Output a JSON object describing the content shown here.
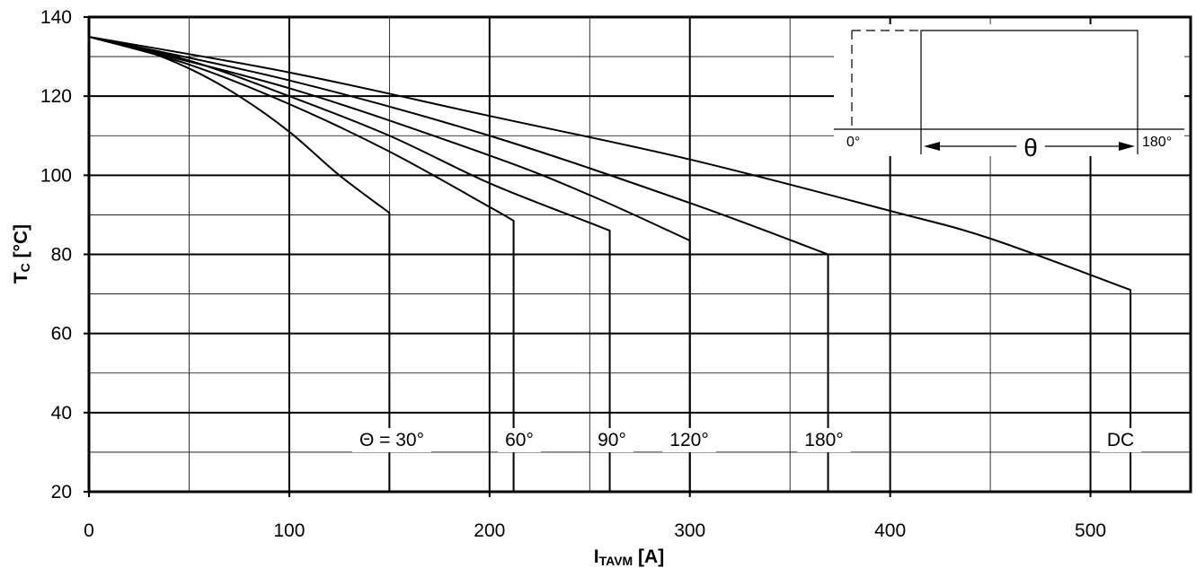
{
  "chart_data": {
    "type": "line",
    "title": "",
    "xlabel": {
      "main": "I",
      "sub": "TAVM",
      "unit": " [A]"
    },
    "ylabel": {
      "main": "T",
      "sub": "C",
      "unit": " [°C]"
    },
    "xlim": [
      0,
      550
    ],
    "ylim": [
      20,
      140
    ],
    "x_ticks": [
      0,
      100,
      200,
      300,
      400,
      500
    ],
    "y_ticks": [
      20,
      40,
      60,
      80,
      100,
      120,
      140
    ],
    "grid": true,
    "series": [
      {
        "name": "30°",
        "label": "Θ = 30°",
        "points": [
          [
            0,
            135
          ],
          [
            25,
            132
          ],
          [
            50,
            127
          ],
          [
            75,
            120
          ],
          [
            100,
            111
          ],
          [
            125,
            100
          ],
          [
            150,
            90.5
          ]
        ],
        "end_x": 150
      },
      {
        "name": "60°",
        "label": "60°",
        "points": [
          [
            0,
            135
          ],
          [
            50,
            128
          ],
          [
            100,
            118
          ],
          [
            150,
            106
          ],
          [
            200,
            92
          ],
          [
            212,
            88.5
          ]
        ],
        "end_x": 212
      },
      {
        "name": "90°",
        "label": "90°",
        "points": [
          [
            0,
            135
          ],
          [
            50,
            129
          ],
          [
            100,
            120
          ],
          [
            150,
            110
          ],
          [
            200,
            98
          ],
          [
            250,
            88
          ],
          [
            260,
            86
          ]
        ],
        "end_x": 260
      },
      {
        "name": "120°",
        "label": "120°",
        "points": [
          [
            0,
            135
          ],
          [
            100,
            122
          ],
          [
            200,
            105
          ],
          [
            250,
            95
          ],
          [
            300,
            83.5
          ]
        ],
        "end_x": 300
      },
      {
        "name": "180°",
        "label": "180°",
        "points": [
          [
            0,
            135
          ],
          [
            100,
            124
          ],
          [
            200,
            110
          ],
          [
            300,
            93
          ],
          [
            369,
            80
          ]
        ],
        "end_x": 369
      },
      {
        "name": "DC",
        "label": "DC",
        "points": [
          [
            0,
            135
          ],
          [
            100,
            126
          ],
          [
            200,
            115
          ],
          [
            300,
            104
          ],
          [
            400,
            91
          ],
          [
            450,
            84
          ],
          [
            520,
            71
          ]
        ],
        "end_x": 520
      }
    ],
    "inset": {
      "left_label": "0°",
      "right_label": "180°",
      "theta_label": "θ"
    }
  }
}
